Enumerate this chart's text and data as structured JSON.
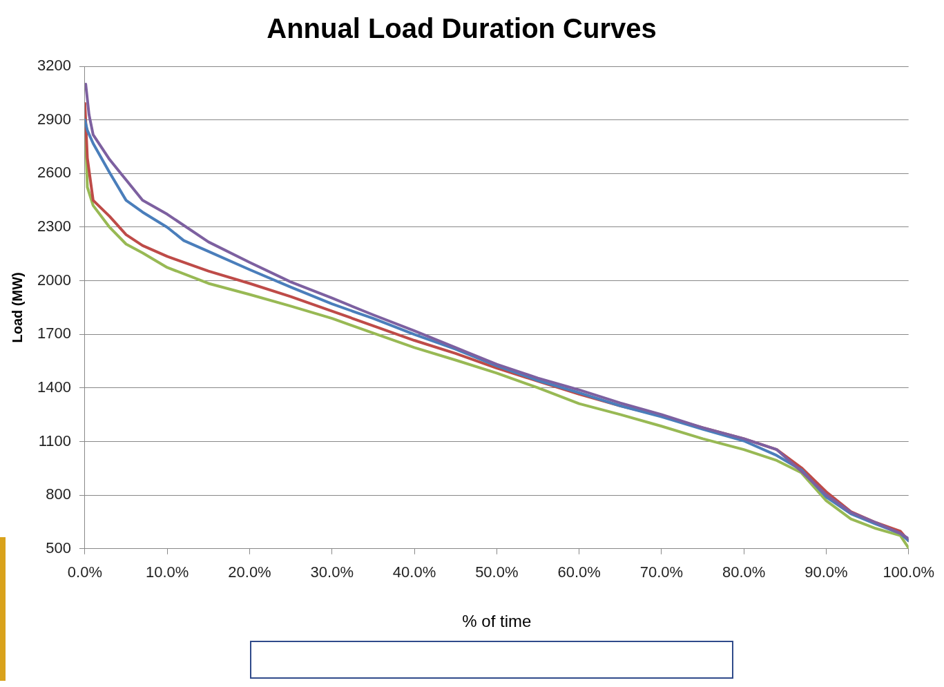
{
  "chart_data": {
    "type": "line",
    "title": "Annual Load Duration Curves",
    "xlabel": "% of time",
    "ylabel": "Load (MW)",
    "xlim": [
      0,
      100
    ],
    "ylim": [
      500,
      3200
    ],
    "xticks": [
      {
        "value": 0,
        "label": "0.0%"
      },
      {
        "value": 10,
        "label": "10.0%"
      },
      {
        "value": 20,
        "label": "20.0%"
      },
      {
        "value": 30,
        "label": "30.0%"
      },
      {
        "value": 40,
        "label": "40.0%"
      },
      {
        "value": 50,
        "label": "50.0%"
      },
      {
        "value": 60,
        "label": "60.0%"
      },
      {
        "value": 70,
        "label": "70.0%"
      },
      {
        "value": 80,
        "label": "80.0%"
      },
      {
        "value": 90,
        "label": "90.0%"
      },
      {
        "value": 100,
        "label": "100.0%"
      }
    ],
    "yticks": [
      500,
      800,
      1100,
      1400,
      1700,
      2000,
      2300,
      2600,
      2900,
      3200
    ],
    "grid": "y",
    "legend": false,
    "marker": "none",
    "line_style": "solid",
    "series": [
      {
        "color": "#7d60a0",
        "x": [
          0.1,
          0.5,
          1,
          3,
          5,
          7,
          10,
          15,
          20,
          25,
          30,
          35,
          40,
          45,
          50,
          55,
          60,
          65,
          70,
          75,
          80,
          84,
          87,
          90,
          93,
          96,
          99,
          100
        ],
        "values": [
          3100,
          2930,
          2817,
          2678,
          2564,
          2450,
          2372,
          2217,
          2103,
          1993,
          1903,
          1809,
          1720,
          1626,
          1532,
          1455,
          1389,
          1316,
          1251,
          1178,
          1116,
          1055,
          933,
          802,
          704,
          647,
          586,
          557
        ]
      },
      {
        "color": "#4a7ebb",
        "x": [
          0,
          0.3,
          1,
          3,
          5,
          7,
          10,
          12,
          15,
          20,
          25,
          30,
          35,
          40,
          45,
          50,
          55,
          60,
          65,
          70,
          75,
          80,
          84,
          87,
          90,
          93,
          96,
          99,
          100
        ],
        "values": [
          2900,
          2841,
          2768,
          2605,
          2450,
          2384,
          2299,
          2225,
          2164,
          2062,
          1964,
          1870,
          1789,
          1699,
          1617,
          1524,
          1442,
          1373,
          1300,
          1239,
          1169,
          1104,
          1022,
          941,
          790,
          696,
          639,
          586,
          545
        ]
      },
      {
        "color": "#be4b48",
        "x": [
          0,
          0.3,
          1,
          3,
          5,
          7,
          10,
          15,
          20,
          25,
          30,
          35,
          40,
          45,
          50,
          55,
          60,
          65,
          70,
          75,
          80,
          84,
          87,
          90,
          93,
          96,
          99,
          100
        ],
        "values": [
          2992,
          2686,
          2450,
          2360,
          2258,
          2197,
          2136,
          2054,
          1985,
          1911,
          1830,
          1748,
          1666,
          1593,
          1511,
          1438,
          1365,
          1300,
          1243,
          1178,
          1116,
          1055,
          953,
          819,
          708,
          647,
          598,
          545
        ]
      },
      {
        "color": "#98b954",
        "x": [
          0,
          0.3,
          1,
          3,
          5,
          7,
          10,
          15,
          20,
          25,
          30,
          35,
          40,
          45,
          50,
          55,
          60,
          65,
          70,
          75,
          80,
          84,
          87,
          90,
          93,
          96,
          99,
          100
        ],
        "values": [
          2931,
          2523,
          2421,
          2299,
          2205,
          2156,
          2074,
          1985,
          1923,
          1858,
          1789,
          1707,
          1626,
          1556,
          1483,
          1401,
          1312,
          1251,
          1186,
          1116,
          1055,
          994,
          925,
          769,
          667,
          614,
          574,
          504
        ]
      }
    ]
  }
}
